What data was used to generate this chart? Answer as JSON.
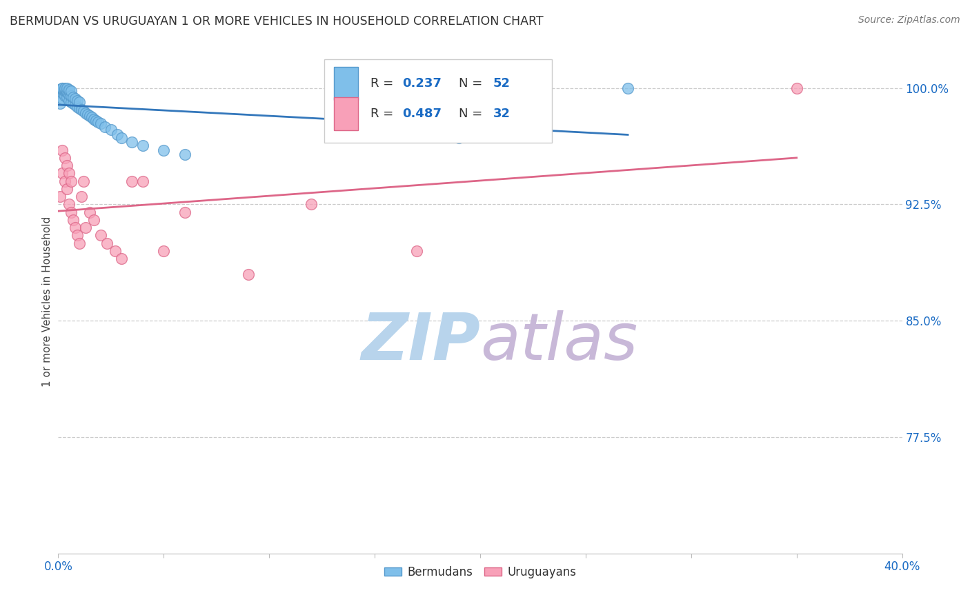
{
  "title": "BERMUDAN VS URUGUAYAN 1 OR MORE VEHICLES IN HOUSEHOLD CORRELATION CHART",
  "source": "Source: ZipAtlas.com",
  "ylabel": "1 or more Vehicles in Household",
  "xlim": [
    0.0,
    0.4
  ],
  "ylim": [
    0.7,
    1.025
  ],
  "ytick_vals": [
    0.775,
    0.85,
    0.925,
    1.0
  ],
  "ytick_labels": [
    "77.5%",
    "85.0%",
    "92.5%",
    "100.0%"
  ],
  "xtick_vals": [
    0.0,
    0.05,
    0.1,
    0.15,
    0.2,
    0.25,
    0.3,
    0.35,
    0.4
  ],
  "xtick_labels": [
    "0.0%",
    "",
    "",
    "",
    "",
    "",
    "",
    "",
    "40.0%"
  ],
  "bermudans_x": [
    0.001,
    0.001,
    0.001,
    0.001,
    0.002,
    0.002,
    0.002,
    0.002,
    0.002,
    0.003,
    0.003,
    0.003,
    0.003,
    0.004,
    0.004,
    0.004,
    0.004,
    0.005,
    0.005,
    0.005,
    0.005,
    0.006,
    0.006,
    0.006,
    0.007,
    0.007,
    0.008,
    0.008,
    0.009,
    0.009,
    0.01,
    0.01,
    0.011,
    0.012,
    0.013,
    0.014,
    0.015,
    0.016,
    0.017,
    0.018,
    0.019,
    0.02,
    0.022,
    0.025,
    0.028,
    0.03,
    0.035,
    0.04,
    0.05,
    0.06,
    0.19,
    0.27
  ],
  "bermudans_y": [
    0.99,
    0.997,
    0.999,
    0.999,
    0.993,
    0.997,
    0.999,
    1.0,
    1.0,
    0.995,
    0.998,
    0.999,
    1.0,
    0.994,
    0.997,
    0.998,
    1.0,
    0.992,
    0.996,
    0.998,
    0.999,
    0.991,
    0.995,
    0.998,
    0.99,
    0.994,
    0.989,
    0.993,
    0.988,
    0.992,
    0.987,
    0.991,
    0.986,
    0.985,
    0.984,
    0.983,
    0.982,
    0.981,
    0.98,
    0.979,
    0.978,
    0.977,
    0.975,
    0.973,
    0.97,
    0.968,
    0.965,
    0.963,
    0.96,
    0.957,
    0.968,
    1.0
  ],
  "uruguayans_x": [
    0.001,
    0.002,
    0.002,
    0.003,
    0.003,
    0.004,
    0.004,
    0.005,
    0.005,
    0.006,
    0.006,
    0.007,
    0.008,
    0.009,
    0.01,
    0.011,
    0.012,
    0.013,
    0.015,
    0.017,
    0.02,
    0.023,
    0.027,
    0.03,
    0.035,
    0.04,
    0.05,
    0.06,
    0.09,
    0.12,
    0.17,
    0.35
  ],
  "uruguayans_y": [
    0.93,
    0.945,
    0.96,
    0.94,
    0.955,
    0.935,
    0.95,
    0.925,
    0.945,
    0.92,
    0.94,
    0.915,
    0.91,
    0.905,
    0.9,
    0.93,
    0.94,
    0.91,
    0.92,
    0.915,
    0.905,
    0.9,
    0.895,
    0.89,
    0.94,
    0.94,
    0.895,
    0.92,
    0.88,
    0.925,
    0.895,
    1.0
  ],
  "R_bermudans": 0.237,
  "N_bermudans": 52,
  "R_uruguayans": 0.487,
  "N_uruguayans": 32,
  "blue_scatter_face": "#7fbfea",
  "blue_scatter_edge": "#5599cc",
  "blue_line_color": "#3377bb",
  "pink_scatter_face": "#f8a0b8",
  "pink_scatter_edge": "#dd6688",
  "pink_line_color": "#dd6688",
  "legend_R_color": "#1a6bc4",
  "legend_N_color": "#1a6bc4",
  "title_color": "#333333",
  "source_color": "#777777",
  "axis_tick_color": "#1a6bc4",
  "watermark_zip_color": "#b8d4ec",
  "watermark_atlas_color": "#c8b8d8",
  "grid_color": "#cccccc",
  "background_color": "#ffffff"
}
